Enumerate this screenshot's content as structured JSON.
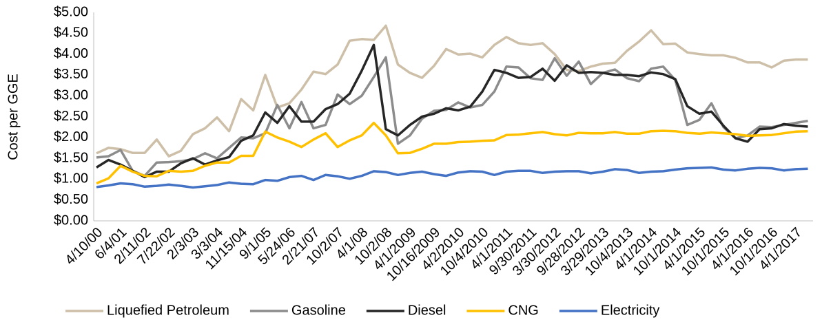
{
  "chart_data": {
    "type": "line",
    "y_label": "Cost per GGE",
    "categories": [
      "4/10/00",
      null,
      "6/4/01",
      null,
      "2/11/02",
      null,
      "7/22/02",
      null,
      "2/3/03",
      null,
      "3/3/04",
      null,
      "11/15/04",
      null,
      "9/1/05",
      null,
      "5/24/06",
      null,
      "2/21/07",
      null,
      "10/2/07",
      null,
      "4/1/08",
      null,
      "10/2/08",
      null,
      "4/1/2009",
      null,
      "10/16/2009",
      null,
      "4/2/2010",
      null,
      "10/4/2010",
      null,
      "4/1/2011",
      null,
      "9/30/2011",
      null,
      "3/30/2012",
      null,
      "9/28/2012",
      null,
      "3/29/2013",
      null,
      "10/4/2013",
      null,
      "4/1/2014",
      null,
      "10/1/2014",
      null,
      "4/1/2015",
      null,
      "10/1/2015",
      null,
      "4/1/2016",
      null,
      "10/1/2016",
      null,
      "4/1/2017",
      null
    ],
    "series": [
      {
        "name": "Liquefied Petroleum",
        "color": "#cdbfa8",
        "values": [
          1.62,
          1.75,
          1.72,
          1.63,
          1.63,
          1.95,
          1.55,
          1.68,
          2.08,
          2.22,
          2.48,
          2.15,
          2.92,
          2.65,
          3.5,
          2.72,
          2.82,
          3.15,
          3.58,
          3.52,
          3.75,
          4.32,
          4.36,
          4.34,
          4.68,
          3.75,
          3.55,
          3.43,
          3.72,
          4.12,
          3.99,
          4.01,
          3.92,
          4.22,
          4.41,
          4.26,
          4.22,
          4.26,
          4.0,
          3.62,
          3.59,
          3.7,
          3.77,
          3.79,
          4.08,
          4.3,
          4.57,
          4.24,
          4.25,
          4.04,
          4.0,
          3.97,
          3.97,
          3.91,
          3.8,
          3.8,
          3.68,
          3.84,
          3.87,
          3.87
        ]
      },
      {
        "name": "Gasoline",
        "color": "#8c8c8c",
        "values": [
          1.52,
          1.55,
          1.7,
          1.2,
          1.08,
          1.4,
          1.41,
          1.43,
          1.48,
          1.62,
          1.5,
          1.75,
          2.0,
          1.98,
          2.1,
          2.78,
          2.22,
          2.85,
          2.22,
          2.3,
          3.03,
          2.8,
          3.0,
          3.45,
          3.92,
          1.85,
          2.05,
          2.45,
          2.64,
          2.66,
          2.84,
          2.72,
          2.78,
          3.1,
          3.7,
          3.68,
          3.42,
          3.38,
          3.9,
          3.48,
          3.82,
          3.28,
          3.55,
          3.63,
          3.42,
          3.35,
          3.65,
          3.7,
          3.38,
          2.3,
          2.42,
          2.82,
          2.25,
          1.98,
          2.05,
          2.26,
          2.25,
          2.3,
          2.35,
          2.4
        ]
      },
      {
        "name": "Diesel",
        "color": "#262626",
        "values": [
          1.28,
          1.46,
          1.35,
          1.2,
          1.05,
          1.18,
          1.18,
          1.38,
          1.5,
          1.35,
          1.45,
          1.53,
          1.92,
          2.05,
          2.6,
          2.35,
          2.75,
          2.38,
          2.38,
          2.68,
          2.8,
          3.05,
          3.6,
          4.22,
          2.2,
          2.05,
          2.3,
          2.5,
          2.57,
          2.7,
          2.65,
          2.74,
          3.1,
          3.62,
          3.55,
          3.43,
          3.45,
          3.65,
          3.36,
          3.73,
          3.55,
          3.57,
          3.55,
          3.5,
          3.5,
          3.47,
          3.56,
          3.52,
          3.4,
          2.75,
          2.57,
          2.62,
          2.28,
          1.98,
          1.9,
          2.2,
          2.22,
          2.32,
          2.28,
          2.26
        ]
      },
      {
        "name": "CNG",
        "color": "#ffc000",
        "values": [
          0.9,
          1.02,
          1.32,
          1.18,
          1.08,
          1.07,
          1.2,
          1.18,
          1.2,
          1.32,
          1.4,
          1.4,
          1.56,
          1.56,
          2.14,
          2.0,
          1.9,
          1.77,
          1.95,
          2.1,
          1.77,
          1.93,
          2.05,
          2.35,
          2.05,
          1.62,
          1.63,
          1.73,
          1.85,
          1.85,
          1.89,
          1.9,
          1.92,
          1.93,
          2.06,
          2.07,
          2.1,
          2.13,
          2.08,
          2.05,
          2.11,
          2.1,
          2.1,
          2.13,
          2.09,
          2.09,
          2.15,
          2.16,
          2.15,
          2.11,
          2.09,
          2.12,
          2.1,
          2.08,
          2.04,
          2.05,
          2.06,
          2.1,
          2.14,
          2.15
        ]
      },
      {
        "name": "Electricity",
        "color": "#4472c4",
        "values": [
          0.81,
          0.85,
          0.9,
          0.88,
          0.82,
          0.84,
          0.87,
          0.84,
          0.8,
          0.83,
          0.86,
          0.92,
          0.89,
          0.88,
          0.98,
          0.96,
          1.05,
          1.08,
          0.98,
          1.1,
          1.07,
          1.01,
          1.08,
          1.19,
          1.17,
          1.1,
          1.15,
          1.18,
          1.12,
          1.08,
          1.16,
          1.19,
          1.18,
          1.1,
          1.18,
          1.2,
          1.2,
          1.15,
          1.18,
          1.19,
          1.19,
          1.14,
          1.18,
          1.24,
          1.22,
          1.15,
          1.18,
          1.19,
          1.23,
          1.26,
          1.27,
          1.28,
          1.23,
          1.21,
          1.25,
          1.27,
          1.26,
          1.21,
          1.24,
          1.25
        ]
      }
    ],
    "ylim": [
      0,
      5
    ],
    "yticks": [
      {
        "value": 0,
        "label": "$0.00"
      },
      {
        "value": 0.5,
        "label": "$0.50"
      },
      {
        "value": 1,
        "label": "$1.00"
      },
      {
        "value": 1.5,
        "label": "$1.50"
      },
      {
        "value": 2,
        "label": "$2.00"
      },
      {
        "value": 2.5,
        "label": "$2.50"
      },
      {
        "value": 3,
        "label": "$3.00"
      },
      {
        "value": 3.5,
        "label": "$3.50"
      },
      {
        "value": 4,
        "label": "$4.00"
      },
      {
        "value": 4.5,
        "label": "$4.50"
      },
      {
        "value": 5,
        "label": "$5.00"
      }
    ],
    "grid": false,
    "legend": "bottom"
  }
}
